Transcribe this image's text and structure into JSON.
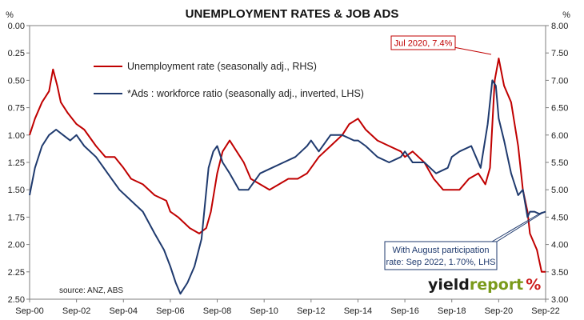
{
  "chart_data": {
    "type": "line",
    "title": "UNEMPLOYMENT RATES & JOB ADS",
    "left_unit": "%",
    "right_unit": "%",
    "x_ticks": [
      "Sep-00",
      "Sep-02",
      "Sep-04",
      "Sep-06",
      "Sep-08",
      "Sep-10",
      "Sep-12",
      "Sep-14",
      "Sep-16",
      "Sep-18",
      "Sep-20",
      "Sep-22"
    ],
    "x_range": [
      2000.67,
      2022.67
    ],
    "left_axis": {
      "ticks": [
        "0.00",
        "0.25",
        "0.50",
        "0.75",
        "1.00",
        "1.25",
        "1.50",
        "1.75",
        "2.00",
        "2.25",
        "2.50"
      ],
      "range": [
        0,
        2.5
      ],
      "inverted": true
    },
    "right_axis": {
      "ticks": [
        "8.00",
        "7.50",
        "7.00",
        "6.50",
        "6.00",
        "5.50",
        "5.00",
        "4.50",
        "4.00",
        "3.50",
        "3.00"
      ],
      "range": [
        3,
        8
      ]
    },
    "grid": false,
    "legend_placement": "top-left",
    "series": [
      {
        "name": "Unemployment rate (seasonally adj., RHS)",
        "axis": "right",
        "color": "#c00000",
        "x": [
          2000.67,
          2000.9,
          2001.2,
          2001.5,
          2001.67,
          2001.85,
          2002.0,
          2002.3,
          2002.67,
          2003.0,
          2003.5,
          2003.9,
          2004.3,
          2004.67,
          2005.0,
          2005.5,
          2006.0,
          2006.5,
          2006.67,
          2007.0,
          2007.5,
          2007.9,
          2008.2,
          2008.4,
          2008.67,
          2008.9,
          2009.2,
          2009.5,
          2009.8,
          2010.1,
          2010.5,
          2010.9,
          2011.3,
          2011.7,
          2012.1,
          2012.5,
          2012.67,
          2013.0,
          2013.5,
          2014.0,
          2014.3,
          2014.67,
          2015.0,
          2015.5,
          2016.0,
          2016.5,
          2016.67,
          2017.0,
          2017.5,
          2017.9,
          2018.3,
          2018.67,
          2019.0,
          2019.4,
          2019.8,
          2020.1,
          2020.3,
          2020.5,
          2020.67,
          2020.9,
          2021.2,
          2021.5,
          2021.7,
          2021.9,
          2022.0,
          2022.3,
          2022.5,
          2022.67
        ],
        "values": [
          6.0,
          6.3,
          6.6,
          6.8,
          7.2,
          6.9,
          6.6,
          6.4,
          6.2,
          6.1,
          5.8,
          5.6,
          5.6,
          5.4,
          5.2,
          5.1,
          4.9,
          4.8,
          4.6,
          4.5,
          4.3,
          4.2,
          4.3,
          4.6,
          5.3,
          5.7,
          5.9,
          5.7,
          5.5,
          5.2,
          5.1,
          5.0,
          5.1,
          5.2,
          5.2,
          5.3,
          5.4,
          5.6,
          5.8,
          6.0,
          6.2,
          6.3,
          6.1,
          5.9,
          5.8,
          5.7,
          5.6,
          5.7,
          5.5,
          5.2,
          5.0,
          5.0,
          5.0,
          5.2,
          5.3,
          5.1,
          5.4,
          7.0,
          7.4,
          6.9,
          6.6,
          5.8,
          5.0,
          4.6,
          4.2,
          3.9,
          3.5,
          3.5
        ]
      },
      {
        "name": "*Ads : workforce ratio (seasonally adj., inverted, LHS)",
        "axis": "left",
        "color": "#1f3a6e",
        "x": [
          2000.67,
          2000.9,
          2001.2,
          2001.5,
          2001.8,
          2002.1,
          2002.4,
          2002.67,
          2003.0,
          2003.5,
          2004.0,
          2004.5,
          2005.0,
          2005.5,
          2006.0,
          2006.4,
          2006.67,
          2006.9,
          2007.1,
          2007.4,
          2007.7,
          2008.0,
          2008.3,
          2008.5,
          2008.67,
          2008.9,
          2009.2,
          2009.6,
          2010.0,
          2010.5,
          2011.0,
          2011.5,
          2012.0,
          2012.5,
          2012.67,
          2013.0,
          2013.5,
          2014.0,
          2014.5,
          2014.67,
          2015.0,
          2015.5,
          2016.0,
          2016.5,
          2016.67,
          2017.0,
          2017.5,
          2018.0,
          2018.5,
          2018.67,
          2019.0,
          2019.5,
          2019.9,
          2020.2,
          2020.4,
          2020.55,
          2020.67,
          2020.9,
          2021.2,
          2021.5,
          2021.7,
          2021.9,
          2022.0,
          2022.2,
          2022.4,
          2022.67
        ],
        "values": [
          1.55,
          1.3,
          1.1,
          1.0,
          0.95,
          1.0,
          1.05,
          1.0,
          1.1,
          1.2,
          1.35,
          1.5,
          1.6,
          1.7,
          1.9,
          2.05,
          2.2,
          2.35,
          2.45,
          2.35,
          2.2,
          1.95,
          1.3,
          1.15,
          1.1,
          1.25,
          1.35,
          1.5,
          1.5,
          1.35,
          1.3,
          1.25,
          1.2,
          1.1,
          1.05,
          1.15,
          1.0,
          1.0,
          1.05,
          1.05,
          1.1,
          1.2,
          1.25,
          1.2,
          1.15,
          1.25,
          1.25,
          1.35,
          1.3,
          1.2,
          1.15,
          1.1,
          1.3,
          0.9,
          0.5,
          0.55,
          0.85,
          1.05,
          1.35,
          1.55,
          1.5,
          1.75,
          1.7,
          1.7,
          1.72,
          1.7
        ]
      }
    ],
    "annotations": [
      {
        "text": "Jul 2020, 7.4%",
        "x": 2020.55,
        "axis": "right",
        "y": 7.4
      },
      {
        "lines": [
          "With August participation",
          "rate: Sep 2022, 1.70%, LHS"
        ],
        "x": 2022.67,
        "axis": "left",
        "y": 1.7
      }
    ],
    "source_note": "source: ANZ, ABS",
    "logo": {
      "part1": "yield",
      "part2": "report",
      "part3": "%"
    }
  }
}
